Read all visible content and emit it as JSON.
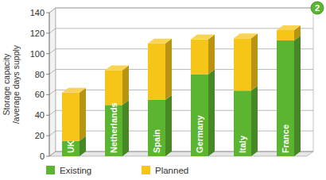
{
  "chart_data": {
    "type": "bar",
    "stacked": true,
    "annotations": [
      "2"
    ],
    "ylabel": [
      "Storage capacity",
      "/average days supply"
    ],
    "categories": [
      "UK",
      "Netherlands",
      "Spain",
      "Germany",
      "Italy",
      "France"
    ],
    "series": [
      {
        "name": "Existing",
        "color": "#5cb531",
        "values": [
          15,
          50,
          55,
          80,
          64,
          113
        ]
      },
      {
        "name": "Planned",
        "color": "#f5c518",
        "values": [
          47,
          34,
          55,
          34,
          51,
          10
        ]
      }
    ],
    "ylim": [
      0,
      140
    ],
    "yticks": [
      0,
      20,
      40,
      60,
      80,
      100,
      120,
      140
    ],
    "grid": true,
    "legend": "bottom"
  }
}
